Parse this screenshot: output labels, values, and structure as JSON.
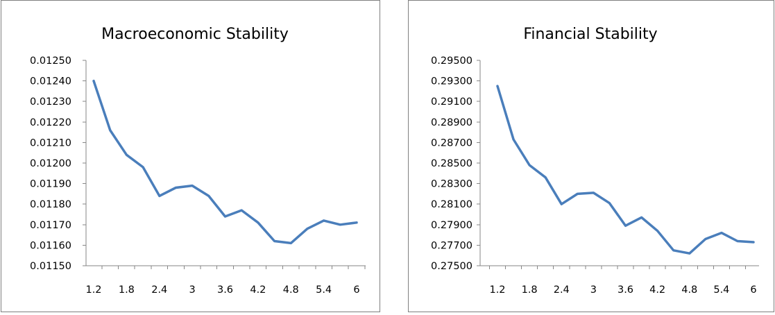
{
  "colors": {
    "line": "#4a7ebb",
    "axis": "#868686",
    "border": "#7f7f7f"
  },
  "chart_data": [
    {
      "type": "line",
      "title": "Macroeconomic Stability",
      "xlabel": "",
      "ylabel": "",
      "x": [
        1.2,
        1.5,
        1.8,
        2.1,
        2.4,
        2.7,
        3.0,
        3.3,
        3.6,
        3.9,
        4.2,
        4.5,
        4.8,
        5.1,
        5.4,
        5.7,
        6.0
      ],
      "x_tick_labels": [
        "1.2",
        "1.8",
        "2.4",
        "3",
        "3.6",
        "4.2",
        "4.8",
        "5.4",
        "6"
      ],
      "y_tick_labels": [
        "0.01250",
        "0.01240",
        "0.01230",
        "0.01220",
        "0.01210",
        "0.01200",
        "0.01190",
        "0.01180",
        "0.01170",
        "0.01160",
        "0.01150"
      ],
      "ylim": [
        0.0115,
        0.0125
      ],
      "grid": false,
      "legend": "none",
      "series": [
        {
          "values": [
            0.0124,
            0.01216,
            0.01204,
            0.01198,
            0.01184,
            0.01188,
            0.01189,
            0.01184,
            0.01174,
            0.01177,
            0.01171,
            0.01162,
            0.01161,
            0.01168,
            0.01172,
            0.0117,
            0.01171
          ]
        }
      ]
    },
    {
      "type": "line",
      "title": "Financial Stability",
      "xlabel": "",
      "ylabel": "",
      "x": [
        1.2,
        1.5,
        1.8,
        2.1,
        2.4,
        2.7,
        3.0,
        3.3,
        3.6,
        3.9,
        4.2,
        4.5,
        4.8,
        5.1,
        5.4,
        5.7,
        6.0
      ],
      "x_tick_labels": [
        "1.2",
        "1.8",
        "2.4",
        "3",
        "3.6",
        "4.2",
        "4.8",
        "5.4",
        "6"
      ],
      "y_tick_labels": [
        "0.29500",
        "0.29300",
        "0.29100",
        "0.28900",
        "0.28700",
        "0.28500",
        "0.28300",
        "0.28100",
        "0.27900",
        "0.27700",
        "0.27500"
      ],
      "ylim": [
        0.275,
        0.295
      ],
      "grid": false,
      "legend": "none",
      "series": [
        {
          "values": [
            0.2925,
            0.2873,
            0.2848,
            0.2836,
            0.281,
            0.282,
            0.2821,
            0.2811,
            0.2789,
            0.2797,
            0.2784,
            0.2765,
            0.2762,
            0.2776,
            0.2782,
            0.2774,
            0.2773
          ]
        }
      ]
    }
  ]
}
